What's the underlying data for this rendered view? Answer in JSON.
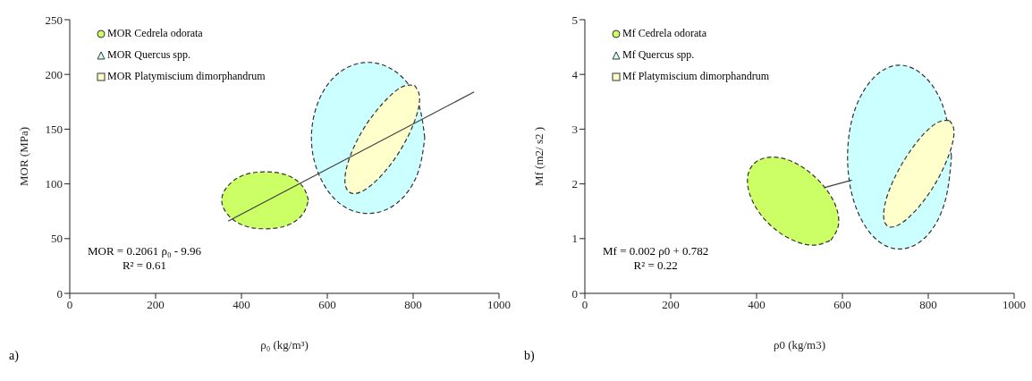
{
  "chart_data": [
    {
      "type": "area",
      "xlabel": "ρ₀ (kg/m³)",
      "ylabel": "MOR  (MPa)",
      "xlim": [
        0,
        1000
      ],
      "xticks": [
        0,
        200,
        400,
        600,
        800,
        1000
      ],
      "ylim": [
        0,
        250
      ],
      "yticks": [
        0,
        50,
        100,
        150,
        200,
        250
      ],
      "legend": "top left",
      "line_style": "dashed",
      "annotations": [
        "MOR = 0.2061 ρ₀ - 9.96",
        "R² = 0.61",
        "a)"
      ],
      "series": [
        {
          "name": "MOR Cedrela odorata",
          "color": "#ccff66",
          "x": [
            556,
            542,
            506,
            455,
            405,
            368,
            354,
            368,
            405,
            455,
            506,
            542,
            556
          ],
          "values": [
            85,
            98,
            108,
            111,
            108,
            98,
            85,
            72,
            62,
            59,
            62,
            72,
            85
          ]
        },
        {
          "name": "MOR Quercus spp.",
          "color": "#ccffff",
          "x": [
            827,
            809,
            761,
            695,
            629,
            581,
            563,
            581,
            629,
            695,
            761,
            809,
            827
          ],
          "values": [
            142,
            177,
            202,
            211,
            202,
            177,
            142,
            108,
            82,
            73,
            82,
            108,
            142
          ]
        },
        {
          "name": "MOR Platymiscium dimorphandrum",
          "color": "#ffffcc",
          "x": [
            803,
            815,
            804,
            772,
            729,
            685,
            653,
            641,
            652,
            684,
            728,
            771,
            803
          ],
          "values": [
            190,
            179,
            158,
            132,
            109,
            94,
            92,
            103,
            124,
            150,
            173,
            188,
            190
          ]
        },
        {
          "type": "line",
          "line_style": "solid",
          "color": "#404040",
          "x": [
            369,
            942
          ],
          "values": [
            66,
            184
          ]
        }
      ]
    },
    {
      "type": "area",
      "xlabel": "ρ0  (kg/m3)",
      "ylabel": "Mf   (m2/ s2 )",
      "xlim": [
        0,
        1000
      ],
      "xticks": [
        0,
        200,
        400,
        600,
        800,
        1000
      ],
      "ylim": [
        0,
        5
      ],
      "yticks": [
        0,
        1,
        2,
        3,
        4,
        5
      ],
      "legend": "top left",
      "line_style": "dashed",
      "annotations": [
        "Mf = 0.002 ρ0 + 0.782",
        "R² = 0.22",
        "b)"
      ],
      "series": [
        {
          "name": "Mf Cedrela odorata",
          "color": "#ccff66",
          "x": [
            573,
            591,
            581,
            545,
            493,
            439,
            397,
            379,
            389,
            425,
            477,
            531,
            573
          ],
          "values": [
            0.97,
            1.26,
            1.66,
            2.06,
            2.37,
            2.49,
            2.39,
            2.11,
            1.71,
            1.3,
            1.0,
            0.88,
            0.97
          ]
        },
        {
          "name": "Mf Quercus spp.",
          "color": "#ccffff",
          "x": [
            854,
            838,
            794,
            733,
            673,
            628,
            612,
            628,
            673,
            733,
            794,
            838,
            854
          ],
          "values": [
            2.49,
            3.33,
            3.94,
            4.17,
            3.94,
            3.33,
            2.49,
            1.65,
            1.03,
            0.81,
            1.03,
            1.65,
            2.49
          ]
        },
        {
          "name": "Mf Platymiscium dimorphandrum",
          "color": "#ffffcc",
          "x": [
            849,
            860,
            849,
            819,
            778,
            737,
            707,
            696,
            707,
            737,
            778,
            819,
            849
          ],
          "values": [
            3.16,
            2.96,
            2.55,
            2.04,
            1.58,
            1.28,
            1.22,
            1.43,
            1.84,
            2.34,
            2.81,
            3.11,
            3.16
          ]
        },
        {
          "type": "line",
          "line_style": "solid",
          "color": "#404040",
          "x": [
            557,
            622
          ],
          "values": [
            1.93,
            2.07
          ]
        }
      ]
    }
  ]
}
